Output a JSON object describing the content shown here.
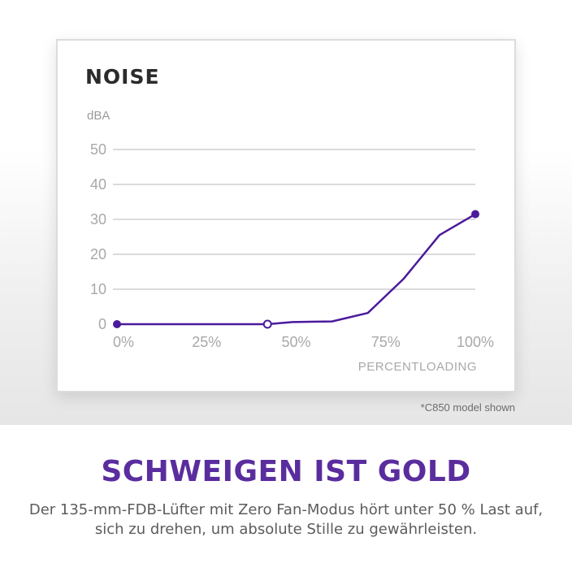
{
  "chart_data": {
    "type": "line",
    "title": "NOISE",
    "ylabel": "dBA",
    "xlabel": "PERCENTLOADING",
    "ylim": [
      0,
      50
    ],
    "xlim": [
      0,
      100
    ],
    "y_ticks": [
      "50",
      "40",
      "30",
      "20",
      "10",
      "0"
    ],
    "x_ticks": [
      "0%",
      "25%",
      "50%",
      "75%",
      "100%"
    ],
    "grid": true,
    "line_color": "#4b1a9c",
    "series": [
      {
        "points": [
          {
            "x": 0,
            "y": 0
          },
          {
            "x": 42,
            "y": 0
          },
          {
            "x": 49,
            "y": 0.6
          },
          {
            "x": 60,
            "y": 0.8
          },
          {
            "x": 70,
            "y": 3.2
          },
          {
            "x": 80,
            "y": 13
          },
          {
            "x": 90,
            "y": 25.5
          },
          {
            "x": 100,
            "y": 31.5
          }
        ],
        "markers": [
          {
            "x": 0,
            "y": 0,
            "style": "filled"
          },
          {
            "x": 42,
            "y": 0,
            "style": "hollow"
          },
          {
            "x": 100,
            "y": 31.5,
            "style": "filled"
          }
        ]
      }
    ]
  },
  "footnote": "*C850 model shown",
  "headline": "SCHWEIGEN IST GOLD",
  "description": "Der 135-mm-FDB-Lüfter mit Zero Fan-Modus hört unter 50 % Last auf, sich zu drehen, um absolute Stille zu gewährleisten.",
  "colors": {
    "headline": "#5a2d9e",
    "line": "#4b1a9c"
  }
}
